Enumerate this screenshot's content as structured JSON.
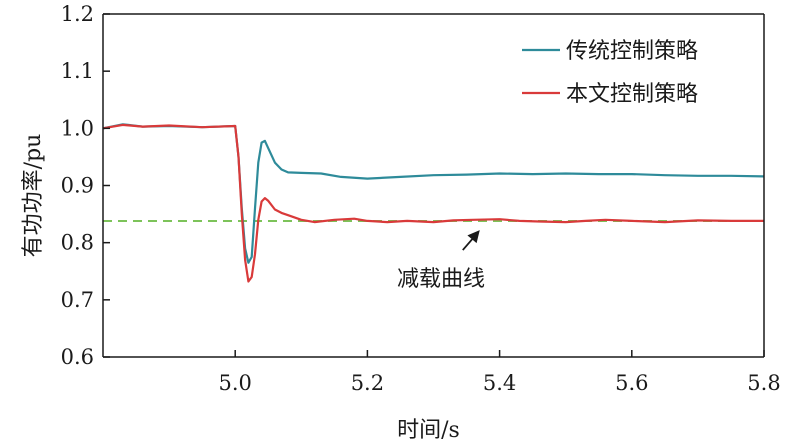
{
  "chart_data": {
    "type": "line",
    "xlabel": "时间/s",
    "ylabel": "有功功率/pu",
    "xlim": [
      4.8,
      5.8
    ],
    "ylim": [
      0.6,
      1.2
    ],
    "xticks": [
      5.0,
      5.2,
      5.4,
      5.6,
      5.8
    ],
    "xtick_labels": [
      "5.0",
      "5.2",
      "5.4",
      "5.6",
      "5.8"
    ],
    "yticks": [
      0.6,
      0.7,
      0.8,
      0.9,
      1.0,
      1.1,
      1.2
    ],
    "ytick_labels": [
      "0.6",
      "0.7",
      "0.8",
      "0.9",
      "1.0",
      "1.1",
      "1.2"
    ],
    "grid": false,
    "legend_position": "top-right",
    "series": [
      {
        "name": "传统控制策略",
        "color": "#2e8b9a",
        "x": [
          4.8,
          4.83,
          4.86,
          4.9,
          4.95,
          5.0,
          5.005,
          5.01,
          5.015,
          5.02,
          5.025,
          5.03,
          5.035,
          5.04,
          5.045,
          5.05,
          5.06,
          5.07,
          5.08,
          5.1,
          5.13,
          5.16,
          5.2,
          5.25,
          5.3,
          5.35,
          5.4,
          5.45,
          5.5,
          5.55,
          5.6,
          5.65,
          5.7,
          5.75,
          5.8
        ],
        "y": [
          1.0,
          1.007,
          1.003,
          1.004,
          1.002,
          1.004,
          0.95,
          0.86,
          0.79,
          0.765,
          0.775,
          0.86,
          0.94,
          0.975,
          0.978,
          0.965,
          0.94,
          0.928,
          0.923,
          0.922,
          0.921,
          0.915,
          0.912,
          0.915,
          0.918,
          0.919,
          0.921,
          0.92,
          0.921,
          0.92,
          0.92,
          0.918,
          0.917,
          0.917,
          0.916
        ]
      },
      {
        "name": "本文控制策略",
        "color": "#d93a3a",
        "x": [
          4.8,
          4.83,
          4.86,
          4.9,
          4.95,
          5.0,
          5.005,
          5.01,
          5.015,
          5.02,
          5.025,
          5.03,
          5.035,
          5.04,
          5.045,
          5.05,
          5.06,
          5.07,
          5.08,
          5.1,
          5.12,
          5.15,
          5.18,
          5.2,
          5.23,
          5.26,
          5.3,
          5.33,
          5.36,
          5.4,
          5.43,
          5.46,
          5.5,
          5.53,
          5.56,
          5.6,
          5.65,
          5.7,
          5.75,
          5.8
        ],
        "y": [
          1.0,
          1.006,
          1.003,
          1.005,
          1.002,
          1.004,
          0.95,
          0.85,
          0.77,
          0.732,
          0.74,
          0.78,
          0.84,
          0.872,
          0.878,
          0.873,
          0.858,
          0.852,
          0.848,
          0.84,
          0.836,
          0.84,
          0.842,
          0.838,
          0.836,
          0.838,
          0.836,
          0.839,
          0.84,
          0.841,
          0.838,
          0.837,
          0.836,
          0.838,
          0.84,
          0.838,
          0.836,
          0.839,
          0.838,
          0.838
        ]
      }
    ],
    "reference_line": {
      "y": 0.838,
      "color": "#7dc35a"
    },
    "annotation": {
      "text": "减载曲线",
      "arrow_to_x": 5.37,
      "arrow_to_y": 0.822
    }
  }
}
